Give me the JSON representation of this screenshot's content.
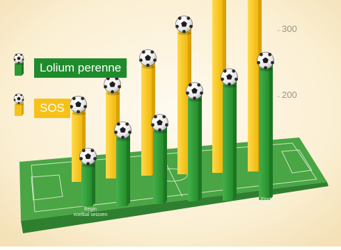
{
  "chart_data": {
    "type": "bar",
    "categories": [
      "",
      "",
      "",
      "",
      "",
      ""
    ],
    "series": [
      {
        "name": "SOS",
        "color": "#f6c21a",
        "values": [
          107,
          132,
          168,
          217,
          271,
          329
        ]
      },
      {
        "name": "Lolium perenne",
        "color": "#2e9a36",
        "values": [
          65,
          105,
          113,
          157,
          177,
          201
        ]
      }
    ],
    "yticks": [
      200,
      300
    ],
    "ytick_labels": [
      "200",
      "300"
    ],
    "ylim": [
      0,
      330
    ],
    "legend": [
      {
        "label": "Lolium perenne",
        "color": "#1f8b2c"
      },
      {
        "label": "SOS",
        "color": "#f6c21a"
      }
    ],
    "field_labels": {
      "start": "Begin\nvoetbal seizoen",
      "end": "Eind\nvoetbal seizoen"
    },
    "marker_icon": "football-icon",
    "background_color": "#fff6df",
    "field_color": "#4aa544"
  }
}
